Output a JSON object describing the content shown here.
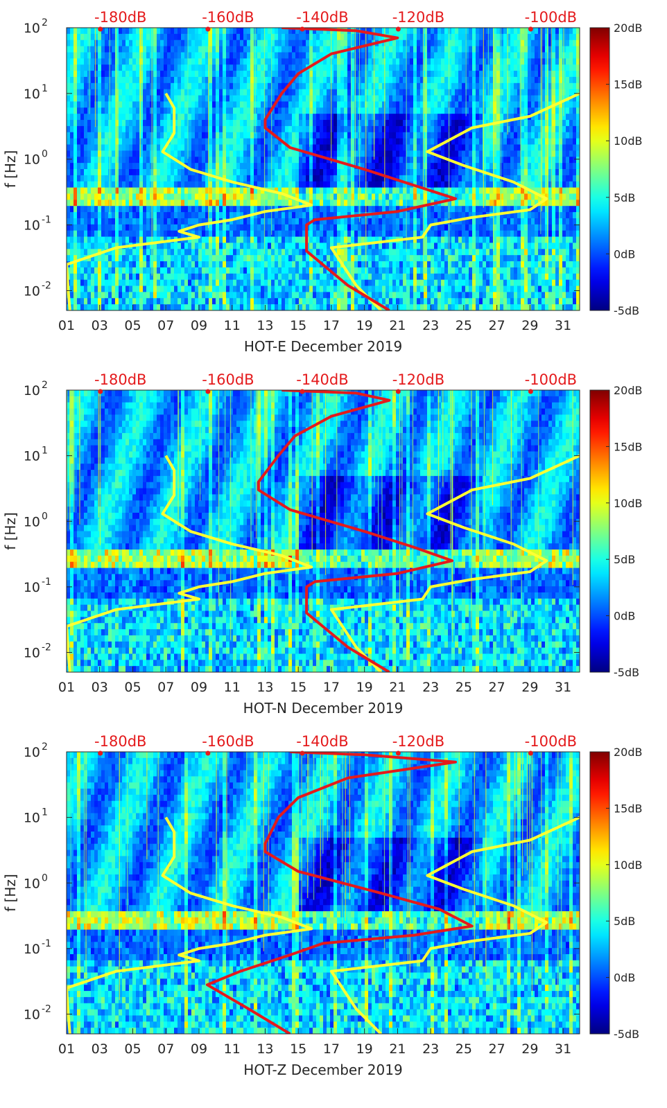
{
  "chart_data": [
    {
      "type": "heatmap",
      "title": "HOT-E December 2019",
      "xlabel": "HOT-E December 2019",
      "ylabel": "f [Hz]",
      "x_ticks": [
        "01",
        "03",
        "05",
        "07",
        "09",
        "11",
        "13",
        "15",
        "17",
        "19",
        "21",
        "23",
        "25",
        "27",
        "29",
        "31"
      ],
      "xlim": [
        1,
        32
      ],
      "ylim_hz": [
        0.005,
        100
      ],
      "y_tick_values": [
        0.01,
        0.1,
        1,
        10,
        100
      ],
      "top_axis_ticks": [
        "-180dB",
        "-160dB",
        "-140dB",
        "-120dB",
        "-100dB"
      ],
      "top_axis_positions_day": [
        3.0,
        9.5,
        15.2,
        21.0,
        29.0
      ],
      "colorbar": {
        "labels": [
          "20dB",
          "15dB",
          "10dB",
          "5dB",
          "0dB",
          "-5dB"
        ],
        "range_db": [
          -5,
          20
        ]
      },
      "series": [
        {
          "name": "yellow-left-curve",
          "color": "#ffff33",
          "points": [
            [
              7.0,
              10
            ],
            [
              7.5,
              6
            ],
            [
              7.5,
              2.5
            ],
            [
              6.8,
              1.3
            ],
            [
              8.5,
              0.7
            ],
            [
              11.0,
              0.45
            ],
            [
              14.0,
              0.3
            ],
            [
              15.8,
              0.2
            ],
            [
              13.0,
              0.16
            ],
            [
              11.0,
              0.12
            ],
            [
              9.0,
              0.1
            ],
            [
              7.8,
              0.08
            ],
            [
              9.0,
              0.065
            ],
            [
              4.0,
              0.045
            ],
            [
              1.0,
              0.025
            ],
            [
              1.1,
              0.01
            ],
            [
              1.2,
              0.005
            ]
          ]
        },
        {
          "name": "yellow-right-curve",
          "color": "#ffff33",
          "points": [
            [
              32.0,
              10
            ],
            [
              29.0,
              4.5
            ],
            [
              25.5,
              3.0
            ],
            [
              22.8,
              1.3
            ],
            [
              25.0,
              0.8
            ],
            [
              28.0,
              0.45
            ],
            [
              30.0,
              0.25
            ],
            [
              29.0,
              0.17
            ],
            [
              25.5,
              0.13
            ],
            [
              23.0,
              0.1
            ],
            [
              22.5,
              0.065
            ],
            [
              17.0,
              0.045
            ],
            [
              18.5,
              0.012
            ],
            [
              20.0,
              0.005
            ]
          ]
        },
        {
          "name": "red-noise-model",
          "color": "#e41a1c",
          "points": [
            [
              14.0,
              100
            ],
            [
              18.5,
              90
            ],
            [
              21.0,
              70
            ],
            [
              17.0,
              40
            ],
            [
              15.0,
              20
            ],
            [
              14.0,
              10
            ],
            [
              13.0,
              4
            ],
            [
              13.0,
              3
            ],
            [
              14.5,
              1.5
            ],
            [
              19.0,
              0.7
            ],
            [
              22.0,
              0.4
            ],
            [
              24.5,
              0.25
            ],
            [
              21.0,
              0.16
            ],
            [
              16.0,
              0.12
            ],
            [
              15.5,
              0.1
            ],
            [
              15.5,
              0.04
            ],
            [
              18.0,
              0.012
            ],
            [
              20.5,
              0.005
            ]
          ]
        }
      ]
    },
    {
      "type": "heatmap",
      "title": "HOT-N December 2019",
      "xlabel": "HOT-N December 2019",
      "ylabel": "f [Hz]",
      "x_ticks": [
        "01",
        "03",
        "05",
        "07",
        "09",
        "11",
        "13",
        "15",
        "17",
        "19",
        "21",
        "23",
        "25",
        "27",
        "29",
        "31"
      ],
      "xlim": [
        1,
        32
      ],
      "ylim_hz": [
        0.005,
        100
      ],
      "y_tick_values": [
        0.01,
        0.1,
        1,
        10,
        100
      ],
      "top_axis_ticks": [
        "-180dB",
        "-160dB",
        "-140dB",
        "-120dB",
        "-100dB"
      ],
      "top_axis_positions_day": [
        3.0,
        9.5,
        15.2,
        21.0,
        29.0
      ],
      "colorbar": {
        "labels": [
          "20dB",
          "15dB",
          "10dB",
          "5dB",
          "0dB",
          "-5dB"
        ],
        "range_db": [
          -5,
          20
        ]
      },
      "series": [
        {
          "name": "yellow-left-curve",
          "color": "#ffff33",
          "points": [
            [
              7.0,
              10
            ],
            [
              7.5,
              6
            ],
            [
              7.5,
              2.5
            ],
            [
              6.8,
              1.3
            ],
            [
              8.5,
              0.7
            ],
            [
              11.0,
              0.45
            ],
            [
              14.0,
              0.3
            ],
            [
              15.8,
              0.2
            ],
            [
              13.0,
              0.16
            ],
            [
              11.0,
              0.12
            ],
            [
              9.0,
              0.1
            ],
            [
              7.8,
              0.08
            ],
            [
              9.0,
              0.065
            ],
            [
              4.0,
              0.045
            ],
            [
              1.0,
              0.025
            ],
            [
              1.1,
              0.01
            ],
            [
              1.2,
              0.005
            ]
          ]
        },
        {
          "name": "yellow-right-curve",
          "color": "#ffff33",
          "points": [
            [
              32.0,
              10
            ],
            [
              29.0,
              4.5
            ],
            [
              25.5,
              3.0
            ],
            [
              22.8,
              1.3
            ],
            [
              25.0,
              0.8
            ],
            [
              28.0,
              0.45
            ],
            [
              30.0,
              0.25
            ],
            [
              29.0,
              0.17
            ],
            [
              25.5,
              0.13
            ],
            [
              23.0,
              0.1
            ],
            [
              22.5,
              0.065
            ],
            [
              17.0,
              0.045
            ],
            [
              18.5,
              0.012
            ],
            [
              20.0,
              0.005
            ]
          ]
        },
        {
          "name": "red-noise-model",
          "color": "#e41a1c",
          "points": [
            [
              14.0,
              100
            ],
            [
              18.5,
              90
            ],
            [
              20.5,
              70
            ],
            [
              17.0,
              40
            ],
            [
              14.8,
              20
            ],
            [
              13.8,
              10
            ],
            [
              12.6,
              4
            ],
            [
              12.6,
              3
            ],
            [
              14.5,
              1.5
            ],
            [
              19.0,
              0.7
            ],
            [
              22.0,
              0.4
            ],
            [
              24.3,
              0.25
            ],
            [
              21.0,
              0.16
            ],
            [
              16.0,
              0.12
            ],
            [
              15.5,
              0.1
            ],
            [
              15.5,
              0.04
            ],
            [
              18.0,
              0.012
            ],
            [
              20.5,
              0.005
            ]
          ]
        }
      ]
    },
    {
      "type": "heatmap",
      "title": "HOT-Z December 2019",
      "xlabel": "HOT-Z December 2019",
      "ylabel": "f [Hz]",
      "x_ticks": [
        "01",
        "03",
        "05",
        "07",
        "09",
        "11",
        "13",
        "15",
        "17",
        "19",
        "21",
        "23",
        "25",
        "27",
        "29",
        "31"
      ],
      "xlim": [
        1,
        32
      ],
      "ylim_hz": [
        0.005,
        100
      ],
      "y_tick_values": [
        0.01,
        0.1,
        1,
        10,
        100
      ],
      "top_axis_ticks": [
        "-180dB",
        "-160dB",
        "-140dB",
        "-120dB",
        "-100dB"
      ],
      "top_axis_positions_day": [
        3.0,
        9.5,
        15.2,
        21.0,
        29.0
      ],
      "colorbar": {
        "labels": [
          "20dB",
          "15dB",
          "10dB",
          "5dB",
          "0dB",
          "-5dB"
        ],
        "range_db": [
          -5,
          20
        ]
      },
      "series": [
        {
          "name": "yellow-left-curve",
          "color": "#ffff33",
          "points": [
            [
              7.0,
              10
            ],
            [
              7.5,
              6
            ],
            [
              7.5,
              2.5
            ],
            [
              6.8,
              1.3
            ],
            [
              8.5,
              0.7
            ],
            [
              11.0,
              0.45
            ],
            [
              14.0,
              0.3
            ],
            [
              15.8,
              0.2
            ],
            [
              13.0,
              0.16
            ],
            [
              11.0,
              0.12
            ],
            [
              9.0,
              0.1
            ],
            [
              7.8,
              0.08
            ],
            [
              9.0,
              0.065
            ],
            [
              4.0,
              0.045
            ],
            [
              1.0,
              0.025
            ],
            [
              1.1,
              0.01
            ],
            [
              1.2,
              0.005
            ]
          ]
        },
        {
          "name": "yellow-right-curve",
          "color": "#ffff33",
          "points": [
            [
              32.0,
              10
            ],
            [
              29.0,
              4.5
            ],
            [
              25.5,
              3.0
            ],
            [
              22.8,
              1.3
            ],
            [
              25.0,
              0.8
            ],
            [
              28.0,
              0.45
            ],
            [
              30.0,
              0.25
            ],
            [
              29.0,
              0.17
            ],
            [
              25.5,
              0.13
            ],
            [
              23.0,
              0.1
            ],
            [
              22.5,
              0.065
            ],
            [
              17.0,
              0.045
            ],
            [
              18.5,
              0.012
            ],
            [
              20.0,
              0.005
            ]
          ]
        },
        {
          "name": "red-noise-model",
          "color": "#e41a1c",
          "points": [
            [
              14.5,
              100
            ],
            [
              19.0,
              90
            ],
            [
              24.5,
              70
            ],
            [
              18.0,
              40
            ],
            [
              15.0,
              20
            ],
            [
              13.8,
              10
            ],
            [
              13.0,
              4
            ],
            [
              13.0,
              3
            ],
            [
              15.0,
              1.5
            ],
            [
              20.0,
              0.7
            ],
            [
              23.5,
              0.4
            ],
            [
              25.5,
              0.22
            ],
            [
              22.0,
              0.16
            ],
            [
              16.5,
              0.12
            ],
            [
              14.5,
              0.08
            ],
            [
              11.5,
              0.045
            ],
            [
              9.5,
              0.028
            ],
            [
              12.0,
              0.012
            ],
            [
              14.5,
              0.005
            ]
          ]
        }
      ]
    }
  ]
}
